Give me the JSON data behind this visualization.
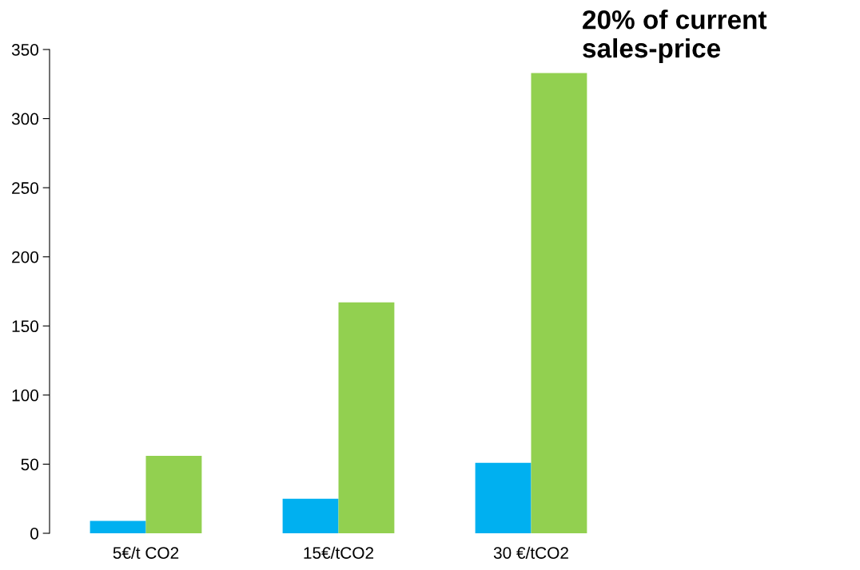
{
  "chart_data": {
    "type": "bar",
    "categories": [
      "5€/t CO2",
      "15€/tCO2",
      "30 €/tCO2"
    ],
    "series": [
      {
        "color": "#00b0f0",
        "values": [
          9,
          25,
          51
        ]
      },
      {
        "color": "#92d050",
        "values": [
          56,
          167,
          333
        ]
      }
    ],
    "ylim": [
      0,
      350
    ],
    "yticks": [
      0,
      50,
      100,
      150,
      200,
      250,
      300,
      350
    ],
    "grid": false,
    "legend": false,
    "annotations": [
      "20% of current\nsales-price"
    ]
  }
}
